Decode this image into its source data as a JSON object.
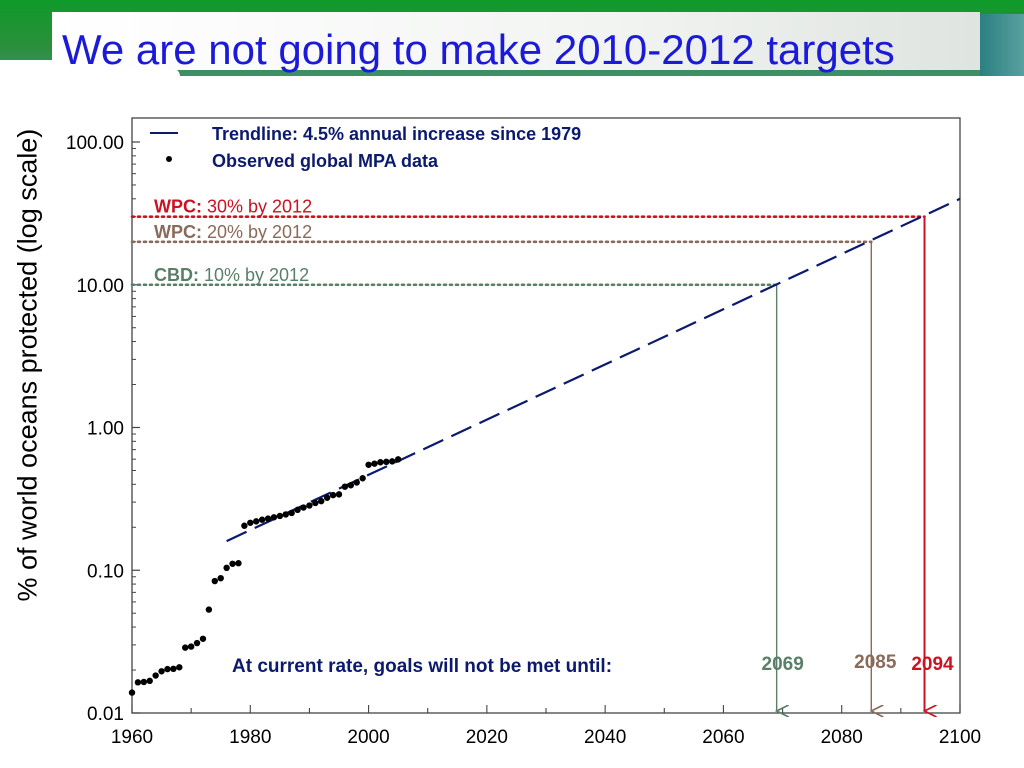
{
  "page": {
    "title": "We are not going to make 2010-2012 targets",
    "colors": {
      "header_green": "#0f9a2a",
      "title_blue": "#1a1ad8"
    }
  },
  "chart_data": {
    "type": "line",
    "ylabel": "% of world oceans protected (log scale)",
    "xlabel": "",
    "xlim": [
      1960,
      2100
    ],
    "ylim": [
      0.01,
      100
    ],
    "y_scale": "log",
    "x_ticks": [
      1960,
      1980,
      2000,
      2020,
      2040,
      2060,
      2080,
      2100
    ],
    "y_ticks": [
      {
        "value": 0.01,
        "label": "0.01"
      },
      {
        "value": 0.1,
        "label": "0.10"
      },
      {
        "value": 1,
        "label": "1.00"
      },
      {
        "value": 10,
        "label": "10.00"
      },
      {
        "value": 100,
        "label": "100.00"
      }
    ],
    "legend": {
      "position": "top-left",
      "entries": [
        {
          "label": "Trendline: 4.5% annual increase since 1979",
          "marker": "dash",
          "color": "#0b1a6e"
        },
        {
          "label": "Observed global MPA data",
          "marker": "dot",
          "color": "#000000"
        }
      ]
    },
    "trendline": {
      "color": "#0b1a6e",
      "points": [
        {
          "x": 1976,
          "y": 0.16
        },
        {
          "x": 2100,
          "y": 40
        }
      ]
    },
    "series": [
      {
        "name": "Observed global MPA data",
        "color": "#000000",
        "points": [
          [
            1960,
            0.0139
          ],
          [
            1961,
            0.0164
          ],
          [
            1962,
            0.0165
          ],
          [
            1963,
            0.0168
          ],
          [
            1964,
            0.0183
          ],
          [
            1965,
            0.0196
          ],
          [
            1966,
            0.0203
          ],
          [
            1967,
            0.0204
          ],
          [
            1968,
            0.0209
          ],
          [
            1969,
            0.0287
          ],
          [
            1970,
            0.0292
          ],
          [
            1971,
            0.0309
          ],
          [
            1972,
            0.0331
          ],
          [
            1973,
            0.053
          ],
          [
            1974,
            0.084
          ],
          [
            1975,
            0.088
          ],
          [
            1976,
            0.104
          ],
          [
            1977,
            0.111
          ],
          [
            1978,
            0.112
          ],
          [
            1979,
            0.205
          ],
          [
            1980,
            0.215
          ],
          [
            1981,
            0.22
          ],
          [
            1982,
            0.226
          ],
          [
            1983,
            0.23
          ],
          [
            1984,
            0.235
          ],
          [
            1985,
            0.24
          ],
          [
            1986,
            0.246
          ],
          [
            1987,
            0.252
          ],
          [
            1988,
            0.265
          ],
          [
            1989,
            0.275
          ],
          [
            1990,
            0.284
          ],
          [
            1991,
            0.296
          ],
          [
            1992,
            0.305
          ],
          [
            1993,
            0.322
          ],
          [
            1994,
            0.336
          ],
          [
            1995,
            0.34
          ],
          [
            1996,
            0.385
          ],
          [
            1997,
            0.394
          ],
          [
            1998,
            0.412
          ],
          [
            1999,
            0.441
          ],
          [
            2000,
            0.548
          ],
          [
            2001,
            0.558
          ],
          [
            2002,
            0.571
          ],
          [
            2003,
            0.575
          ],
          [
            2004,
            0.579
          ],
          [
            2005,
            0.598
          ]
        ]
      }
    ],
    "targets": [
      {
        "org": "WPC:",
        "text": " 30% by 2012",
        "value": 30,
        "color": "#cc1122",
        "year": 2094,
        "year_label": "2094"
      },
      {
        "org": "WPC:",
        "text": " 20% by 2012",
        "value": 20,
        "color": "#8a6a58",
        "year": 2085,
        "year_label": "2085"
      },
      {
        "org": "CBD:",
        "text": " 10% by 2012",
        "value": 10,
        "color": "#5a7f68",
        "year": 2069,
        "year_label": "2069"
      }
    ],
    "annotation": "At current rate, goals will not be met until:"
  }
}
